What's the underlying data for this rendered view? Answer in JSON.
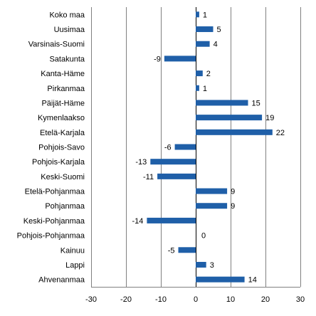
{
  "chart_data": {
    "type": "bar",
    "orientation": "horizontal",
    "categories": [
      "Koko maa",
      "Uusimaa",
      "Varsinais-Suomi",
      "Satakunta",
      "Kanta-Häme",
      "Pirkanmaa",
      "Päijät-Häme",
      "Kymenlaakso",
      "Etelä-Karjala",
      "Pohjois-Savo",
      "Pohjois-Karjala",
      "Keski-Suomi",
      "Etelä-Pohjanmaa",
      "Pohjanmaa",
      "Keski-Pohjanmaa",
      "Pohjois-Pohjanmaa",
      "Kainuu",
      "Lappi",
      "Ahvenanmaa"
    ],
    "values": [
      1,
      5,
      4,
      -9,
      2,
      1,
      15,
      19,
      22,
      -6,
      -13,
      -11,
      9,
      9,
      -14,
      0,
      -5,
      3,
      14
    ],
    "value_labels": [
      "1",
      "5",
      "4",
      "-9",
      "2",
      "1",
      "15",
      "19",
      "22",
      "-6",
      "-13",
      "-11",
      "9",
      "9",
      "-14",
      "0",
      "-5",
      "3",
      "14"
    ],
    "title": "",
    "xlabel": "",
    "ylabel": "",
    "xlim": [
      -30,
      30
    ],
    "xticks": [
      -30,
      -20,
      -10,
      0,
      10,
      20,
      30
    ],
    "xtick_labels": [
      "-30",
      "-20",
      "-10",
      "0",
      "10",
      "20",
      "30"
    ],
    "grid": "vertical",
    "legend": "none",
    "colors": {
      "bar": "#1f5fa8",
      "grid": "#808080",
      "axis": "#000000"
    }
  }
}
